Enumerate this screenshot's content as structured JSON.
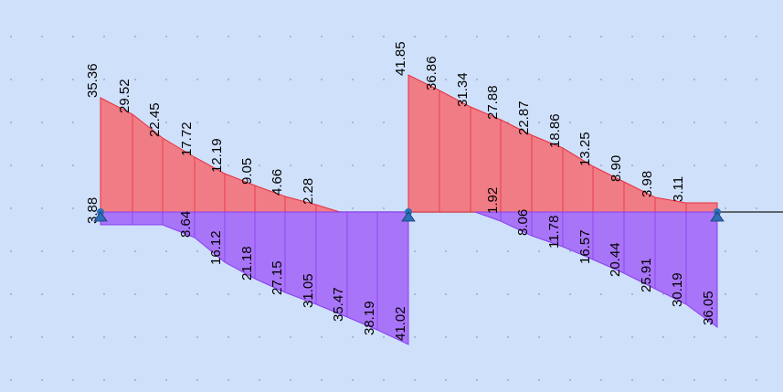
{
  "colors": {
    "background": "#cfe0fb",
    "positive_fill": "#f07c86",
    "positive_stroke": "#e8303c",
    "negative_fill": "#a874f8",
    "negative_stroke": "#8a3ef0",
    "support": "#2e6fb7"
  },
  "support_icon": "pin-support-icon",
  "chart_data": {
    "type": "area",
    "spans": [
      {
        "name": "",
        "positive_values": [
          "35.36",
          "29.52",
          "22.45",
          "17.72",
          "12.19",
          "9.05",
          "4.66",
          "2.28"
        ],
        "negative_start": "3.88",
        "negative_values": [
          "8.64",
          "16.12",
          "21.18",
          "27.15",
          "31.05",
          "35.47",
          "38.19",
          "41.02"
        ]
      },
      {
        "name": "",
        "positive_values": [
          "41.85",
          "36.86",
          "31.34",
          "27.88",
          "22.87",
          "18.86",
          "13.25",
          "8.90",
          "3.98",
          "3.11"
        ],
        "positive_inner": [
          "1.92"
        ],
        "negative_values": [
          "8.06",
          "11.78",
          "16.57",
          "20.44",
          "25.91",
          "30.19",
          "36.05"
        ]
      }
    ]
  }
}
